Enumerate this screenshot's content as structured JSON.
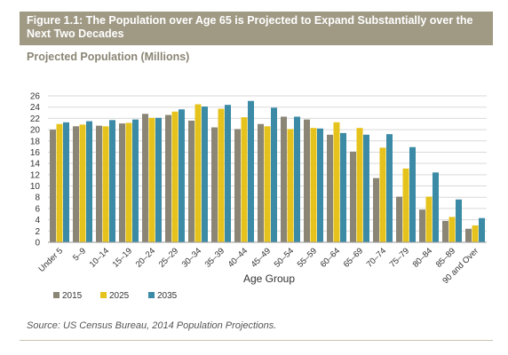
{
  "header": {
    "title": "Figure 1.1: The Population over Age 65 is Projected to Expand Substantially over the Next Two Decades"
  },
  "subtitle": "Projected Population (Millions)",
  "source": "Source: US Census Bureau, 2014 Population Projections.",
  "colors": {
    "s2015": "#8b8576",
    "s2025": "#e6c31c",
    "s2035": "#3b8aa6",
    "header_bg": "#a09a85",
    "gridline": "#d9d9d9"
  },
  "chart_data": {
    "type": "bar",
    "title": "Projected Population (Millions)",
    "xlabel": "Age Group",
    "ylabel": "",
    "ylim": [
      0,
      26
    ],
    "yticks": [
      0,
      2,
      4,
      6,
      8,
      10,
      12,
      14,
      16,
      18,
      20,
      22,
      24,
      26
    ],
    "grid": true,
    "legend": "bottom",
    "categories": [
      "Under 5",
      "5–9",
      "10–14",
      "15–19",
      "20–24",
      "25–29",
      "30–34",
      "35–39",
      "40–44",
      "45–49",
      "50–54",
      "55–59",
      "60–64",
      "65–69",
      "70–74",
      "75–79",
      "80–84",
      "85–89",
      "90 and Over"
    ],
    "series": [
      {
        "name": "2015",
        "values": [
          20.0,
          20.6,
          20.7,
          21.1,
          22.8,
          22.6,
          21.6,
          20.4,
          20.1,
          21.0,
          22.3,
          21.8,
          19.1,
          16.1,
          11.4,
          8.1,
          5.8,
          3.8,
          2.4
        ]
      },
      {
        "name": "2025",
        "values": [
          21.0,
          20.9,
          20.6,
          21.2,
          22.1,
          23.2,
          24.5,
          23.7,
          22.2,
          20.6,
          20.1,
          20.3,
          21.3,
          20.3,
          16.8,
          13.1,
          8.1,
          4.5,
          3.0
        ]
      },
      {
        "name": "2035",
        "values": [
          21.3,
          21.5,
          21.7,
          21.8,
          22.1,
          23.6,
          24.1,
          24.4,
          25.1,
          23.9,
          22.3,
          20.2,
          19.4,
          19.1,
          19.2,
          16.9,
          12.4,
          7.6,
          4.3
        ]
      }
    ]
  }
}
